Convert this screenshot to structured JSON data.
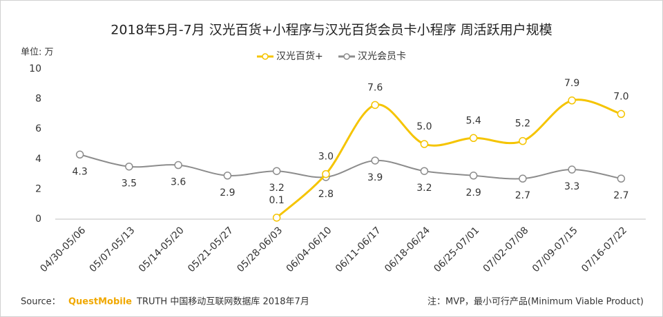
{
  "chart_data": {
    "type": "line",
    "title": "2018年5月-7月 汉光百货+小程序与汉光百货会员卡小程序 周活跃用户规模",
    "y_unit": "单位: 万",
    "categories": [
      "04/30-05/06",
      "05/07-05/13",
      "05/14-05/20",
      "05/21-05/27",
      "05/28-06/03",
      "06/04-06/10",
      "06/11-06/17",
      "06/18-06/24",
      "06/25-07/01",
      "07/02-07/08",
      "07/09-07/15",
      "07/16-07/22"
    ],
    "series": [
      {
        "name": "汉光百货+",
        "color": "#f5c400",
        "values": [
          null,
          null,
          null,
          null,
          0.1,
          3.0,
          7.6,
          5.0,
          5.4,
          5.2,
          7.9,
          7.0
        ],
        "value_labels": [
          null,
          null,
          null,
          null,
          "0.1",
          "3.0",
          "7.6",
          "5.0",
          "5.4",
          "5.2",
          "7.9",
          "7.0"
        ]
      },
      {
        "name": "汉光会员卡",
        "color": "#8c8c8c",
        "values": [
          4.3,
          3.5,
          3.6,
          2.9,
          3.2,
          2.8,
          3.9,
          3.2,
          2.9,
          2.7,
          3.3,
          2.7
        ]
      }
    ],
    "ylim": [
      0,
      10
    ],
    "yticks": [
      0,
      2,
      4,
      6,
      8,
      10
    ],
    "grid": false,
    "source_prefix": "Source：",
    "source_brand": "QuestMobile",
    "source_rest": "TRUTH 中国移动互联网数据库 2018年7月",
    "note": "注：MVP，最小可行产品(Minimum Viable Product)"
  }
}
